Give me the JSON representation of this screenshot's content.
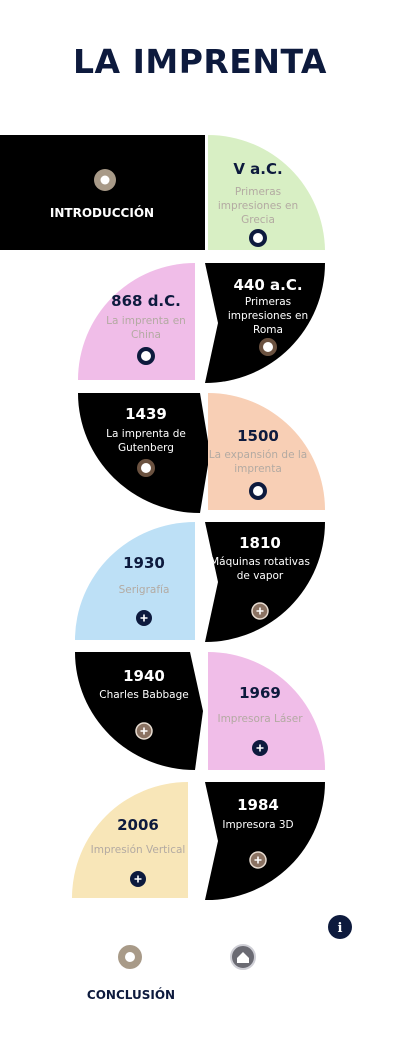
{
  "header": {
    "title": "LA IMPRENTA"
  },
  "intro": {
    "label": "INTRODUCCIÓN"
  },
  "items": [
    {
      "year": "V a.C.",
      "text": "Primeras impresiones en Grecia"
    },
    {
      "year": "868 d.C.",
      "text": "La imprenta en China"
    },
    {
      "year": "440 a.C.",
      "text": "Primeras impresiones en Roma"
    },
    {
      "year": "1439",
      "text": "La imprenta de Gutenberg"
    },
    {
      "year": "1500",
      "text": "La expansión de la imprenta"
    },
    {
      "year": "1930",
      "text": "Serigrafía"
    },
    {
      "year": "1810",
      "text": "Máquinas rotativas de vapor"
    },
    {
      "year": "1940",
      "text": "Charles Babbage"
    },
    {
      "year": "1969",
      "text": "Impresora Láser"
    },
    {
      "year": "2006",
      "text": "Impresión Vertical"
    },
    {
      "year": "1984",
      "text": "Impresora 3D"
    }
  ],
  "conclusion": {
    "label": "CONCLUSIÓN"
  }
}
